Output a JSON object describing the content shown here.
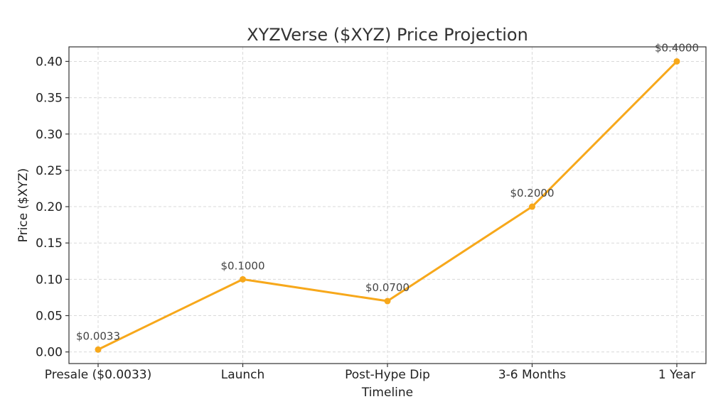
{
  "chart_data": {
    "type": "line",
    "title": "XYZVerse ($XYZ) Price Projection",
    "xlabel": "Timeline",
    "ylabel": "Price ($XYZ)",
    "categories": [
      "Presale ($0.0033)",
      "Launch",
      "Post-Hype Dip",
      "3-6 Months",
      "1 Year"
    ],
    "series": [
      {
        "values": [
          0.0033,
          0.1,
          0.07,
          0.2,
          0.4
        ],
        "labels": [
          "$0.0033",
          "$0.1000",
          "$0.0700",
          "$0.2000",
          "$0.4000"
        ],
        "color": "#F7A81B"
      }
    ],
    "yticks": [
      0.0,
      0.05,
      0.1,
      0.15,
      0.2,
      0.25,
      0.3,
      0.35,
      0.4
    ],
    "ytick_labels": [
      "0.00",
      "0.05",
      "0.10",
      "0.15",
      "0.20",
      "0.25",
      "0.30",
      "0.35",
      "0.40"
    ],
    "ylim": [
      -0.016,
      0.42
    ],
    "grid": true
  }
}
